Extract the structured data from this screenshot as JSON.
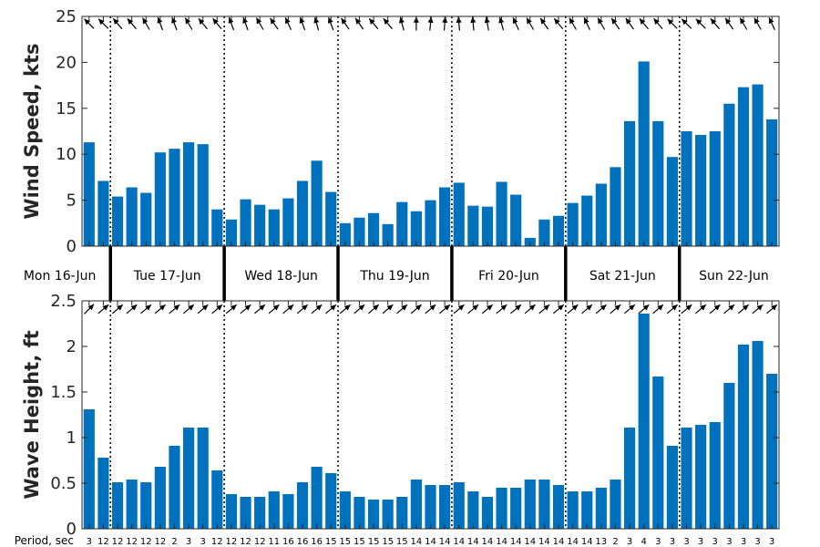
{
  "chart_data": [
    {
      "type": "bar",
      "ylabel": "Wind Speed, kts",
      "ylim": [
        0,
        25
      ],
      "yticks": [
        "0",
        "5",
        "10",
        "15",
        "20",
        "25"
      ],
      "bar_color": "#0072bd",
      "grid": false,
      "values": [
        11.3,
        7.1,
        5.4,
        6.4,
        5.8,
        10.2,
        10.6,
        11.3,
        11.1,
        4.0,
        2.9,
        5.1,
        4.5,
        4.0,
        5.2,
        7.1,
        9.3,
        5.9,
        2.5,
        3.1,
        3.6,
        2.4,
        4.8,
        3.8,
        5.0,
        6.4,
        6.9,
        4.4,
        4.3,
        7.0,
        5.6,
        0.9,
        2.9,
        3.3,
        4.7,
        5.5,
        6.8,
        8.6,
        13.6,
        20.1,
        13.6,
        9.7,
        12.5,
        12.1,
        12.5,
        15.5,
        17.3,
        17.6,
        13.8
      ],
      "arrow_dirs": [
        135,
        135,
        130,
        130,
        120,
        110,
        110,
        120,
        130,
        130,
        110,
        110,
        120,
        125,
        115,
        110,
        105,
        110,
        125,
        125,
        130,
        130,
        105,
        90,
        85,
        85,
        95,
        95,
        100,
        105,
        115,
        120,
        125,
        130,
        120,
        115,
        120,
        125,
        125,
        130,
        130,
        135,
        135,
        135,
        130,
        125,
        120,
        120,
        115
      ]
    },
    {
      "type": "bar",
      "ylabel": "Wave Height, ft",
      "ylim": [
        0,
        2.5
      ],
      "yticks": [
        "0",
        "0.5",
        "1",
        "1.5",
        "2",
        "2.5"
      ],
      "bar_color": "#0072bd",
      "grid": false,
      "values": [
        1.31,
        0.78,
        0.51,
        0.54,
        0.51,
        0.68,
        0.91,
        1.11,
        1.11,
        0.64,
        0.38,
        0.35,
        0.35,
        0.41,
        0.38,
        0.51,
        0.68,
        0.61,
        0.41,
        0.35,
        0.32,
        0.32,
        0.35,
        0.54,
        0.48,
        0.48,
        0.51,
        0.41,
        0.35,
        0.45,
        0.45,
        0.54,
        0.54,
        0.48,
        0.41,
        0.41,
        0.45,
        0.54,
        1.11,
        2.36,
        1.67,
        0.91,
        1.11,
        1.14,
        1.17,
        1.6,
        2.02,
        2.06,
        1.7
      ],
      "arrow_dirs": [
        45,
        40,
        40,
        40,
        40,
        40,
        40,
        40,
        40,
        40,
        40,
        40,
        40,
        40,
        40,
        40,
        40,
        40,
        40,
        40,
        40,
        40,
        40,
        40,
        40,
        40,
        40,
        40,
        40,
        40,
        40,
        40,
        40,
        40,
        40,
        40,
        40,
        40,
        40,
        40,
        40,
        40,
        40,
        40,
        40,
        40,
        40,
        40,
        40
      ]
    }
  ],
  "days": [
    "Mon 16-Jun",
    "Tue 17-Jun",
    "Wed 18-Jun",
    "Thu 19-Jun",
    "Fri 20-Jun",
    "Sat 21-Jun",
    "Sun 22-Jun"
  ],
  "period_label": "Period, sec",
  "periods": [
    "3",
    "12",
    "12",
    "12",
    "12",
    "12",
    "2",
    "3",
    "3",
    "12",
    "12",
    "12",
    "12",
    "11",
    "16",
    "16",
    "16",
    "15",
    "15",
    "15",
    "15",
    "15",
    "15",
    "14",
    "14",
    "14",
    "14",
    "14",
    "14",
    "14",
    "14",
    "14",
    "14",
    "14",
    "14",
    "14",
    "13",
    "2",
    "3",
    "4",
    "3",
    "3",
    "3",
    "3",
    "3",
    "3",
    "3",
    "3",
    "3"
  ]
}
